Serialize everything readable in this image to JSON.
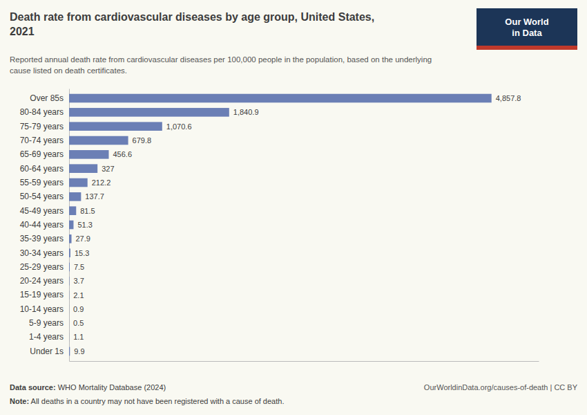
{
  "chart_data": {
    "type": "bar",
    "orientation": "horizontal",
    "title": "Death rate from cardiovascular diseases by age group, United States,\n2021",
    "subtitle": "Reported annual death rate from cardiovascular diseases per 100,000 people in the population, based on the underlying\ncause listed on death certificates.",
    "categories": [
      "Over 85s",
      "80-84 years",
      "75-79 years",
      "70-74 years",
      "65-69 years",
      "60-64 years",
      "55-59 years",
      "50-54 years",
      "45-49 years",
      "40-44 years",
      "35-39 years",
      "30-34 years",
      "25-29 years",
      "20-24 years",
      "15-19 years",
      "10-14 years",
      "5-9 years",
      "1-4 years",
      "Under 1s"
    ],
    "values": [
      4857.8,
      1840.9,
      1070.6,
      679.8,
      456.6,
      327.0,
      212.2,
      137.7,
      81.5,
      51.3,
      27.9,
      15.3,
      7.5,
      3.7,
      2.1,
      0.9,
      0.5,
      1.1,
      9.9
    ],
    "value_labels": [
      "4,857.8",
      "1,840.9",
      "1,070.6",
      "679.8",
      "456.6",
      "327",
      "212.2",
      "137.7",
      "81.5",
      "51.3",
      "27.9",
      "15.3",
      "7.5",
      "3.7",
      "2.1",
      "0.9",
      "0.5",
      "1.1",
      "9.9"
    ],
    "data_labels": true,
    "color": "#6b7fb5",
    "xlim": [
      0,
      5400
    ],
    "tick_labels": "y",
    "grid": false,
    "annotations": [
      "Data source: WHO Mortality Database (2024)",
      "Note: All deaths in a country may not have been registered with a cause of death.",
      "OurWorldinData.org/causes-of-death | CC BY",
      "Our World\nin Data"
    ]
  }
}
